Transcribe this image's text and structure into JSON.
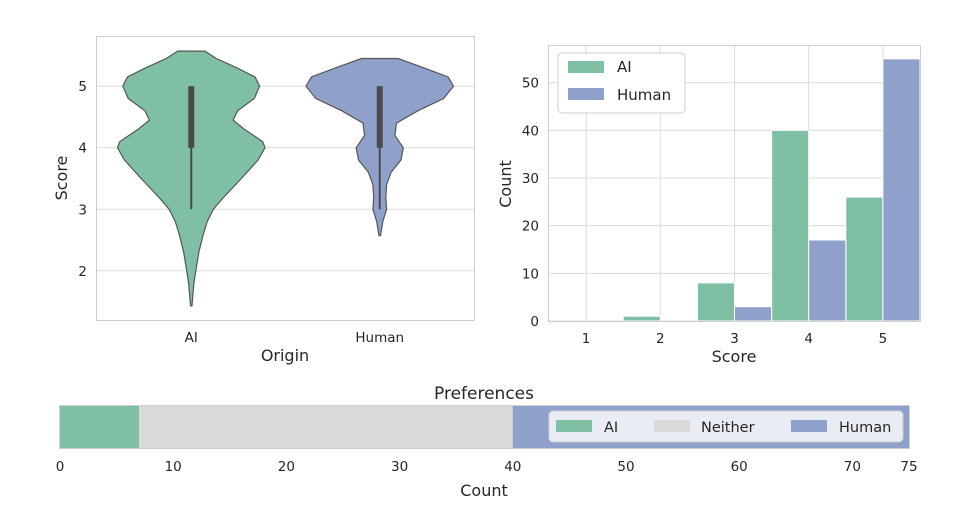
{
  "colors": {
    "ai": "#7fc0a5",
    "human": "#8fa0cb",
    "neither": "#d9d9d9",
    "edge": "#555555"
  },
  "chart_data": [
    {
      "type": "violin",
      "xlabel": "Origin",
      "ylabel": "Score",
      "categories": [
        "AI",
        "Human"
      ],
      "ylim": [
        1.2,
        5.8
      ],
      "yticks": [
        2,
        3,
        4,
        5
      ],
      "grid": true,
      "violins": [
        {
          "name": "AI",
          "extent": [
            1.43,
            5.57
          ],
          "quartiles": [
            4,
            5
          ],
          "whisker": [
            3,
            5
          ],
          "density": [
            [
              1.43,
              0.01
            ],
            [
              1.6,
              0.02
            ],
            [
              1.8,
              0.035
            ],
            [
              2.0,
              0.06
            ],
            [
              2.3,
              0.1
            ],
            [
              2.6,
              0.16
            ],
            [
              2.8,
              0.21
            ],
            [
              3.0,
              0.29
            ],
            [
              3.2,
              0.43
            ],
            [
              3.5,
              0.66
            ],
            [
              3.8,
              0.88
            ],
            [
              4.0,
              0.97
            ],
            [
              4.1,
              0.94
            ],
            [
              4.3,
              0.7
            ],
            [
              4.45,
              0.55
            ],
            [
              4.6,
              0.61
            ],
            [
              4.8,
              0.83
            ],
            [
              5.0,
              0.9
            ],
            [
              5.15,
              0.84
            ],
            [
              5.3,
              0.6
            ],
            [
              5.45,
              0.33
            ],
            [
              5.57,
              0.18
            ]
          ]
        },
        {
          "name": "Human",
          "extent": [
            2.57,
            5.45
          ],
          "quartiles": [
            4,
            5
          ],
          "whisker": [
            3,
            5
          ],
          "density": [
            [
              2.57,
              0.01
            ],
            [
              2.8,
              0.04
            ],
            [
              3.0,
              0.09
            ],
            [
              3.2,
              0.08
            ],
            [
              3.4,
              0.09
            ],
            [
              3.6,
              0.15
            ],
            [
              3.8,
              0.28
            ],
            [
              4.0,
              0.31
            ],
            [
              4.2,
              0.2
            ],
            [
              4.4,
              0.22
            ],
            [
              4.6,
              0.5
            ],
            [
              4.8,
              0.84
            ],
            [
              5.0,
              0.97
            ],
            [
              5.15,
              0.9
            ],
            [
              5.3,
              0.58
            ],
            [
              5.45,
              0.24
            ]
          ]
        }
      ]
    },
    {
      "type": "bar",
      "xlabel": "Score",
      "ylabel": "Count",
      "categories": [
        1,
        2,
        3,
        4,
        5
      ],
      "ylim": [
        0,
        57.7
      ],
      "yticks": [
        0,
        10,
        20,
        30,
        40,
        50
      ],
      "grid": true,
      "legend_position": "top-left",
      "series": [
        {
          "name": "AI",
          "values": [
            0,
            1,
            8,
            40,
            26
          ]
        },
        {
          "name": "Human",
          "values": [
            0,
            0,
            3,
            17,
            55
          ]
        }
      ]
    },
    {
      "type": "stacked-bar",
      "title": "Preferences",
      "xlabel": "Count",
      "xlim": [
        0,
        75
      ],
      "xticks": [
        0,
        10,
        20,
        30,
        40,
        50,
        60,
        70,
        75
      ],
      "legend_position": "right",
      "series": [
        {
          "name": "AI",
          "value": 7
        },
        {
          "name": "Neither",
          "value": 33
        },
        {
          "name": "Human",
          "value": 35
        }
      ]
    }
  ]
}
